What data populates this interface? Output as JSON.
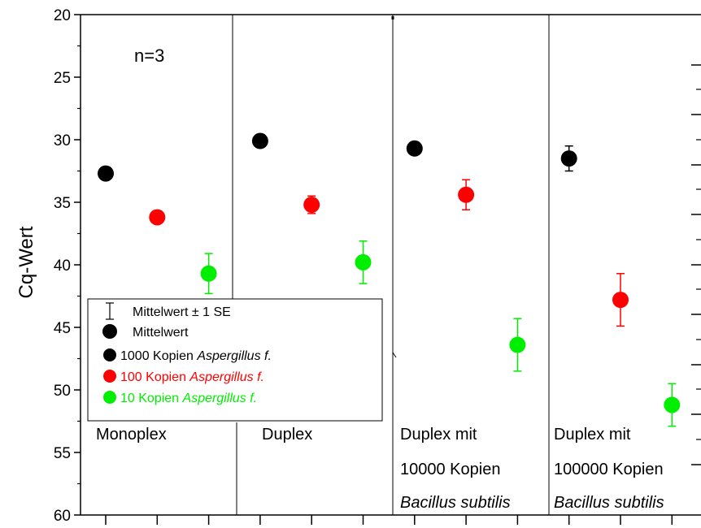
{
  "chart_data": {
    "type": "scatter",
    "title": "",
    "xlabel": "",
    "ylabel": "Cq-Wert",
    "ylim": [
      20,
      60
    ],
    "y_inverted": true,
    "yticks": [
      20,
      25,
      30,
      35,
      40,
      45,
      50,
      55,
      60
    ],
    "grid": false,
    "annotation": "n=3",
    "panels": [
      {
        "label_lines": [
          "Monoplex"
        ],
        "italic_line": ""
      },
      {
        "label_lines": [
          "Duplex"
        ],
        "italic_line": ""
      },
      {
        "label_lines": [
          "Duplex mit",
          "10000 Kopien"
        ],
        "italic_line": "Bacillus subtilis"
      },
      {
        "label_lines": [
          "Duplex mit",
          "100000 Kopien"
        ],
        "italic_line": "Bacillus subtilis"
      }
    ],
    "series": [
      {
        "name": "1000 Kopien",
        "name_italic": "Aspergillus f.",
        "color": "#000000",
        "x": [
          1,
          4,
          7,
          10
        ],
        "values": [
          32.7,
          30.1,
          30.7,
          31.5
        ],
        "errors": [
          0.3,
          0.3,
          0.3,
          1.0
        ]
      },
      {
        "name": "100 Kopien",
        "name_italic": "Aspergillus f.",
        "color": "#ff0000",
        "x": [
          2,
          5,
          8,
          11
        ],
        "values": [
          36.2,
          35.2,
          34.4,
          42.8
        ],
        "errors": [
          0.3,
          0.7,
          1.2,
          2.1
        ]
      },
      {
        "name": "10 Kopien",
        "name_italic": "Aspergillus f.",
        "color": "#00ee00",
        "x": [
          3,
          6,
          9,
          12
        ],
        "values": [
          40.7,
          39.8,
          46.4,
          51.2
        ],
        "errors": [
          1.6,
          1.7,
          2.1,
          1.7
        ]
      }
    ],
    "legend": {
      "placement": "lower-left",
      "errorbar_entry": "Mittelwert ± 1 SE",
      "mean_entry": "Mittelwert"
    }
  }
}
